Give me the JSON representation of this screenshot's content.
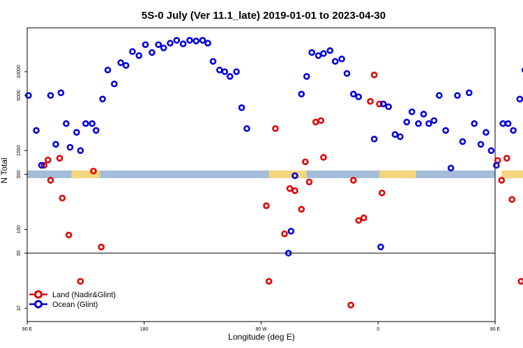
{
  "chart_data": {
    "type": "scatter",
    "title": "5S-0 July (Ver 11.1_late)   2019-01-01 to 2023-04-30",
    "xlabel": "Longitude (deg E)",
    "ylabel": "N Total",
    "y_scale": "log",
    "x_axis": {
      "range": [
        90,
        450
      ],
      "ticks": [
        {
          "value": 90,
          "label": "90 E"
        },
        {
          "value": 180,
          "label": "180"
        },
        {
          "value": 270,
          "label": "90 W"
        },
        {
          "value": 360,
          "label": "0"
        },
        {
          "value": 450,
          "label": "90 E"
        },
        {
          "value": 540,
          "label": "180"
        }
      ]
    },
    "y_axis": {
      "ticks": [
        10,
        50,
        100,
        500,
        1000,
        5000,
        10000
      ],
      "reference_line": 50
    },
    "land_band": {
      "y_value": 500,
      "ocean_color": "#a3bcd9",
      "land_color": "#f5d67f",
      "land_segments": [
        [
          124,
          146
        ],
        [
          276,
          305
        ],
        [
          361,
          389
        ],
        [
          455,
          478
        ]
      ]
    },
    "legend": {
      "placement": "bottom-left",
      "entries": [
        {
          "label": "Land (Nadir&Glint)",
          "color": "#e00000"
        },
        {
          "label": "Ocean (Glint)",
          "color": "#0000e0"
        }
      ]
    },
    "series": [
      {
        "name": "Land (Nadir&Glint)",
        "color": "#e00000",
        "points": [
          [
            103,
            650
          ],
          [
            106,
            760
          ],
          [
            108,
            420
          ],
          [
            115,
            800
          ],
          [
            117,
            250
          ],
          [
            122,
            85
          ],
          [
            131,
            22
          ],
          [
            141,
            550
          ],
          [
            147,
            60
          ],
          [
            274,
            200
          ],
          [
            276,
            22
          ],
          [
            281,
            1900
          ],
          [
            288,
            88
          ],
          [
            292,
            330
          ],
          [
            296,
            310
          ],
          [
            301,
            180
          ],
          [
            304,
            720
          ],
          [
            307,
            400
          ],
          [
            312,
            2300
          ],
          [
            316,
            2400
          ],
          [
            318,
            820
          ],
          [
            339,
            11
          ],
          [
            341,
            420
          ],
          [
            345,
            130
          ],
          [
            349,
            140
          ],
          [
            354,
            4200
          ],
          [
            357,
            9100
          ],
          [
            361,
            3900
          ],
          [
            363,
            290
          ],
          [
            452,
            750
          ],
          [
            455,
            420
          ],
          [
            459,
            800
          ],
          [
            463,
            240
          ],
          [
            470,
            22
          ],
          [
            474,
            85
          ],
          [
            476,
            550
          ],
          [
            484,
            60
          ]
        ]
      },
      {
        "name": "Ocean (Glint)",
        "color": "#0000e0",
        "points": [
          [
            91,
            5000
          ],
          [
            97,
            1800
          ],
          [
            101,
            650
          ],
          [
            108,
            5000
          ],
          [
            112,
            1200
          ],
          [
            116,
            5400
          ],
          [
            120,
            2200
          ],
          [
            123,
            1100
          ],
          [
            128,
            1700
          ],
          [
            131,
            1000
          ],
          [
            135,
            2200
          ],
          [
            140,
            2200
          ],
          [
            143,
            1800
          ],
          [
            148,
            4500
          ],
          [
            152,
            10500
          ],
          [
            157,
            7000
          ],
          [
            162,
            13000
          ],
          [
            166,
            12000
          ],
          [
            171,
            18000
          ],
          [
            176,
            16000
          ],
          [
            181,
            22000
          ],
          [
            186,
            17500
          ],
          [
            191,
            22000
          ],
          [
            195,
            20000
          ],
          [
            200,
            23000
          ],
          [
            205,
            25000
          ],
          [
            210,
            22500
          ],
          [
            215,
            25000
          ],
          [
            220,
            24500
          ],
          [
            225,
            25000
          ],
          [
            229,
            23000
          ],
          [
            233,
            13500
          ],
          [
            238,
            10500
          ],
          [
            242,
            10000
          ],
          [
            246,
            8700
          ],
          [
            251,
            10000
          ],
          [
            255,
            3500
          ],
          [
            259,
            1900
          ],
          [
            291,
            50
          ],
          [
            293,
            95
          ],
          [
            296,
            480
          ],
          [
            301,
            5200
          ],
          [
            305,
            8700
          ],
          [
            309,
            17500
          ],
          [
            314,
            16000
          ],
          [
            318,
            17000
          ],
          [
            323,
            18500
          ],
          [
            327,
            13500
          ],
          [
            332,
            14500
          ],
          [
            336,
            9500
          ],
          [
            341,
            5200
          ],
          [
            345,
            4800
          ],
          [
            357,
            1400
          ],
          [
            362,
            60
          ],
          [
            364,
            3900
          ],
          [
            368,
            3600
          ],
          [
            373,
            1600
          ],
          [
            377,
            1500
          ],
          [
            382,
            2300
          ],
          [
            386,
            3100
          ],
          [
            391,
            2200
          ],
          [
            395,
            2900
          ],
          [
            399,
            2200
          ],
          [
            403,
            2400
          ],
          [
            407,
            5000
          ],
          [
            412,
            1800
          ],
          [
            416,
            600
          ],
          [
            421,
            5000
          ],
          [
            425,
            1300
          ],
          [
            430,
            5400
          ],
          [
            434,
            2200
          ],
          [
            439,
            1200
          ],
          [
            443,
            1700
          ],
          [
            447,
            1000
          ],
          [
            451,
            650
          ],
          [
            456,
            2200
          ],
          [
            460,
            2200
          ],
          [
            464,
            1800
          ],
          [
            469,
            4500
          ],
          [
            473,
            10500
          ],
          [
            478,
            7000
          ],
          [
            483,
            13000
          ],
          [
            487,
            12000
          ]
        ]
      }
    ]
  }
}
